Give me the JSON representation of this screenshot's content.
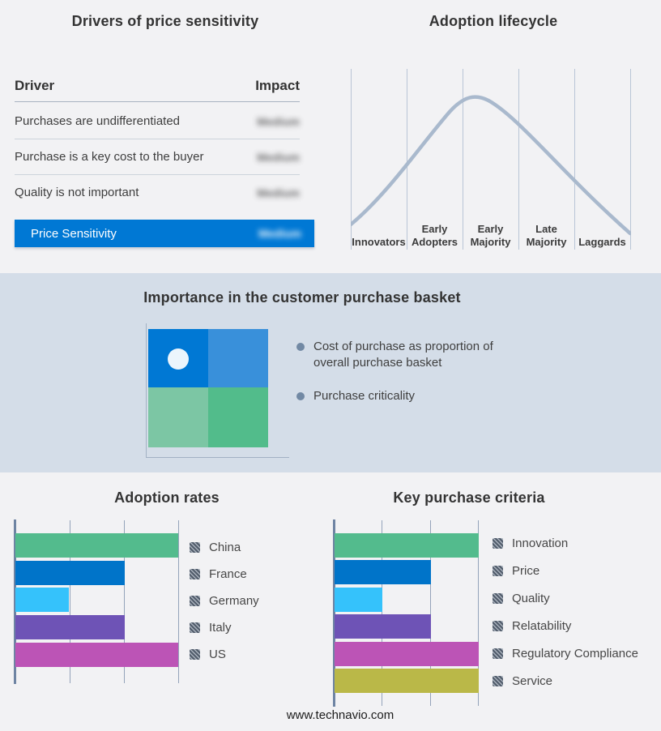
{
  "colors": {
    "page_bg": "#f2f2f4",
    "band_bg": "#d4dde8",
    "highlight_blue": "#0078d4",
    "curve": "#a9b9cd",
    "lifecycle_grid": "#b9c5d6",
    "bar_axis": "#6e84a3",
    "bar_grid": "#94a3ba",
    "bullet": "#7289a4",
    "dot": "#ecf5fc",
    "hatch_dark": "#515c6b",
    "hatch_light": "#a9b1bc",
    "bar_palette": [
      "#53bb8d",
      "#0074c9",
      "#35c2fb",
      "#6e53b6",
      "#bc54b6",
      "#bab848"
    ],
    "quadrant": {
      "top_left": "#0078d4",
      "top_right": "#3990da",
      "bottom_left": "#7cc6a4",
      "bottom_right": "#52bc8b"
    }
  },
  "drivers_panel": {
    "title": "Drivers of price sensitivity",
    "columns": {
      "driver": "Driver",
      "impact": "Impact"
    },
    "rows": [
      {
        "driver": "Purchases are undifferentiated",
        "impact": "Medium",
        "impact_obscured": true
      },
      {
        "driver": "Purchase is a key cost to the buyer",
        "impact": "Medium",
        "impact_obscured": true
      },
      {
        "driver": "Quality is not important",
        "impact": "Medium",
        "impact_obscured": true
      }
    ],
    "highlight_row": {
      "driver": "Price Sensitivity",
      "impact": "Medium",
      "impact_obscured": true
    }
  },
  "lifecycle_panel": {
    "title": "Adoption lifecycle",
    "stages": [
      "Innovators",
      "Early Adopters",
      "Early Majority",
      "Late Majority",
      "Laggards"
    ]
  },
  "basket_panel": {
    "title": "Importance in the customer purchase basket",
    "bullets": [
      "Cost of purchase as proportion of overall purchase basket",
      "Purchase criticality"
    ]
  },
  "adoption_rates_panel": {
    "title": "Adoption rates"
  },
  "key_criteria_panel": {
    "title": "Key purchase criteria"
  },
  "footer": {
    "website": "www.technavio.com"
  },
  "chart_data": [
    {
      "type": "line",
      "title": "Adoption lifecycle",
      "x_categories": [
        "Innovators",
        "Early Adopters",
        "Early Majority",
        "Late Majority",
        "Laggards"
      ],
      "description": "Bell-shaped adoption curve rising from Innovators, peaking at Early Majority, declining through Laggards",
      "grid": "vertical section dividers",
      "yaxis": "unlabeled"
    },
    {
      "type": "bar",
      "title": "Adoption rates",
      "orientation": "horizontal",
      "categories": [
        "China",
        "France",
        "Germany",
        "Italy",
        "US"
      ],
      "values": [
        100,
        67,
        33,
        67,
        100
      ],
      "xlim": [
        0,
        100
      ],
      "grid": true,
      "value_labels_shown": false,
      "legend_position": "right"
    },
    {
      "type": "bar",
      "title": "Key purchase criteria",
      "orientation": "horizontal",
      "categories": [
        "Innovation",
        "Price",
        "Quality",
        "Relatability",
        "Regulatory Compliance",
        "Service"
      ],
      "values": [
        100,
        67,
        33,
        67,
        100,
        100
      ],
      "xlim": [
        0,
        100
      ],
      "grid": true,
      "value_labels_shown": false,
      "legend_position": "right"
    }
  ]
}
